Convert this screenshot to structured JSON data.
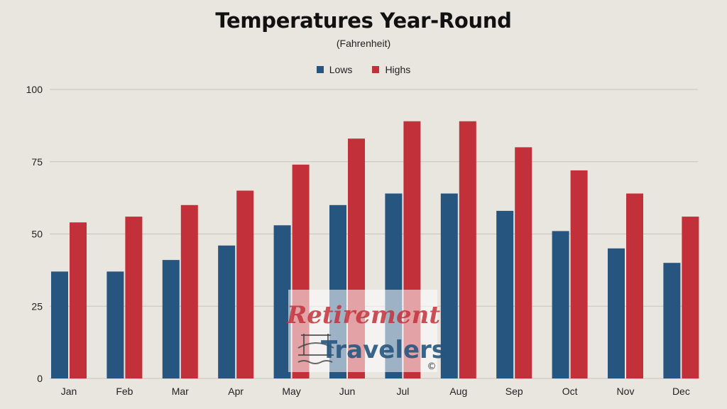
{
  "colors": {
    "lows": "#26557f",
    "highs": "#c2313a",
    "grid": "#c7c3bd",
    "background": "#e9e5df"
  },
  "chart_data": {
    "type": "bar",
    "title": "Temperatures Year-Round",
    "subtitle": "(Fahrenheit)",
    "xlabel": "",
    "ylabel": "",
    "categories": [
      "Jan",
      "Feb",
      "Mar",
      "Apr",
      "May",
      "Jun",
      "Jul",
      "Aug",
      "Sep",
      "Oct",
      "Nov",
      "Dec"
    ],
    "series": [
      {
        "name": "Lows",
        "values": [
          37,
          37,
          41,
          46,
          53,
          60,
          64,
          64,
          58,
          51,
          45,
          40
        ]
      },
      {
        "name": "Highs",
        "values": [
          54,
          56,
          60,
          65,
          74,
          83,
          89,
          89,
          80,
          72,
          64,
          56
        ]
      }
    ],
    "ylim": [
      0,
      100
    ],
    "yticks": [
      "0",
      "25",
      "50",
      "75",
      "100"
    ],
    "grid": true,
    "legend": "top-center"
  },
  "watermark": {
    "line1": "Retirement",
    "line2": "Travelers",
    "mark": "©"
  }
}
